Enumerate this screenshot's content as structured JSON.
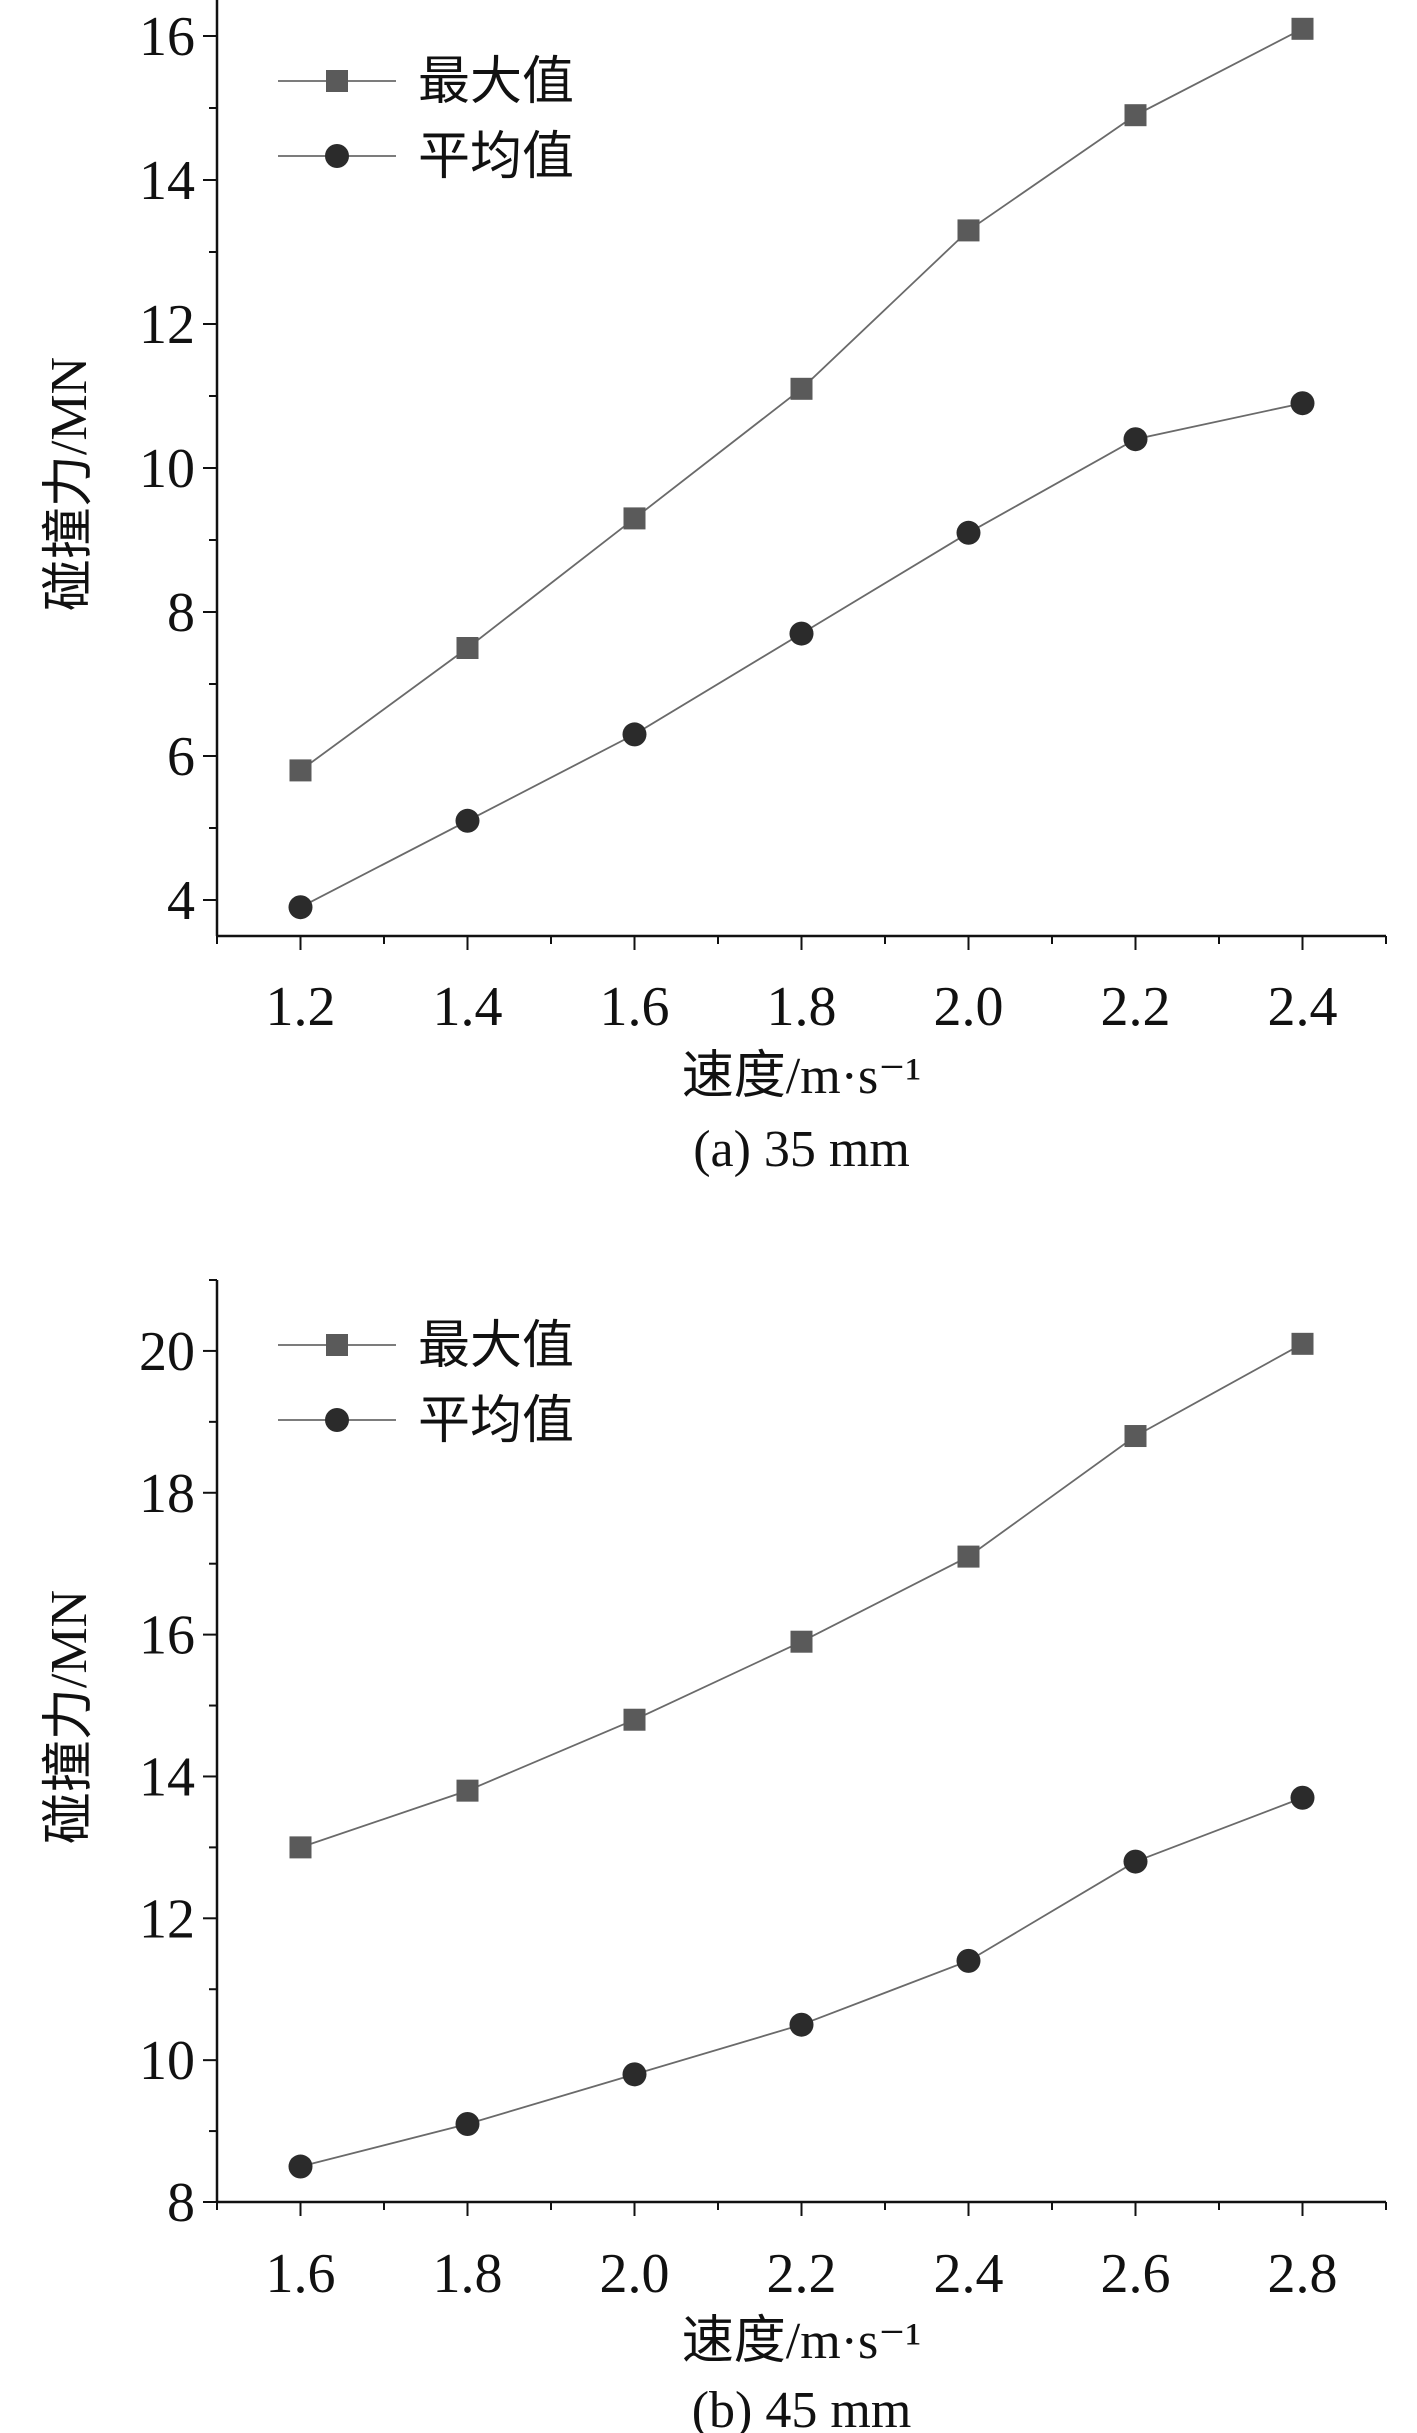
{
  "chart_data": [
    {
      "type": "line",
      "subtitle": "(a) 35 mm",
      "xlabel": "速度/m·s⁻¹",
      "ylabel": "碰撞力/MN",
      "x": [
        1.2,
        1.4,
        1.6,
        1.8,
        2.0,
        2.2,
        2.4
      ],
      "xticks": [
        "1.2",
        "1.4",
        "1.6",
        "1.8",
        "2.0",
        "2.2",
        "2.4"
      ],
      "yticks": [
        4,
        6,
        8,
        10,
        12,
        14,
        16
      ],
      "xlim": [
        1.1,
        2.5
      ],
      "ylim": [
        3.5,
        16.5
      ],
      "grid": false,
      "legend_position": "top-left",
      "series": [
        {
          "name": "最大值",
          "marker": "square",
          "color": "#5a5a5a",
          "values": [
            5.8,
            7.5,
            9.3,
            11.1,
            13.3,
            14.9,
            16.1
          ]
        },
        {
          "name": "平均值",
          "marker": "circle",
          "color": "#2b2b2b",
          "values": [
            3.9,
            5.1,
            6.3,
            7.7,
            9.1,
            10.4,
            10.9
          ]
        }
      ]
    },
    {
      "type": "line",
      "subtitle": "(b) 45 mm",
      "xlabel": "速度/m·s⁻¹",
      "ylabel": "碰撞力/MN",
      "x": [
        1.6,
        1.8,
        2.0,
        2.2,
        2.4,
        2.6,
        2.8
      ],
      "xticks": [
        "1.6",
        "1.8",
        "2.0",
        "2.2",
        "2.4",
        "2.6",
        "2.8"
      ],
      "yticks": [
        8,
        10,
        12,
        14,
        16,
        18,
        20
      ],
      "xlim": [
        1.5,
        2.9
      ],
      "ylim": [
        8,
        21
      ],
      "grid": false,
      "legend_position": "top-left",
      "series": [
        {
          "name": "最大值",
          "marker": "square",
          "color": "#5a5a5a",
          "values": [
            13.0,
            13.8,
            14.8,
            15.9,
            17.1,
            18.8,
            20.1
          ]
        },
        {
          "name": "平均值",
          "marker": "circle",
          "color": "#2b2b2b",
          "values": [
            8.5,
            9.1,
            9.8,
            10.5,
            11.4,
            12.8,
            13.7
          ]
        }
      ]
    }
  ]
}
